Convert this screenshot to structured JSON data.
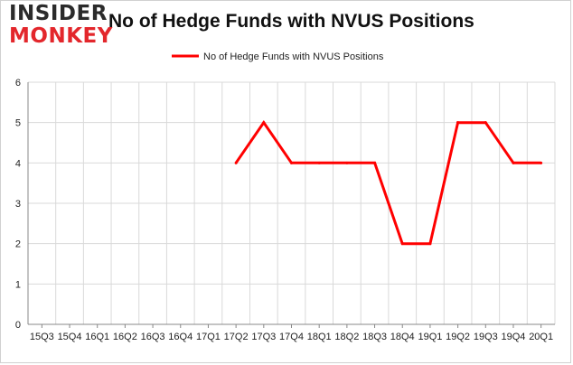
{
  "header": {
    "logo_top": "INSIDER",
    "logo_bottom": "MONKEY",
    "title": "No of Hedge Funds with NVUS Positions"
  },
  "colors": {
    "series": "#ff0000",
    "grid": "#d9d9d9",
    "axis": "#888888",
    "logo_dark": "#2b2b2b",
    "logo_red": "#e3272c"
  },
  "chart_data": {
    "type": "line",
    "title": "No of Hedge Funds with NVUS Positions",
    "xlabel": "",
    "ylabel": "",
    "ylim": [
      0,
      6
    ],
    "yticks": [
      0,
      1,
      2,
      3,
      4,
      5,
      6
    ],
    "grid": true,
    "legend_position": "top-center",
    "categories": [
      "15Q3",
      "15Q4",
      "16Q1",
      "16Q2",
      "16Q3",
      "16Q4",
      "17Q1",
      "17Q2",
      "17Q3",
      "17Q4",
      "18Q1",
      "18Q2",
      "18Q3",
      "18Q4",
      "19Q1",
      "19Q2",
      "19Q3",
      "19Q4",
      "20Q1"
    ],
    "series": [
      {
        "name": "No of Hedge Funds with NVUS Positions",
        "values": [
          null,
          null,
          null,
          null,
          null,
          null,
          null,
          4,
          5,
          4,
          4,
          4,
          4,
          2,
          2,
          5,
          5,
          4,
          4
        ]
      }
    ]
  }
}
